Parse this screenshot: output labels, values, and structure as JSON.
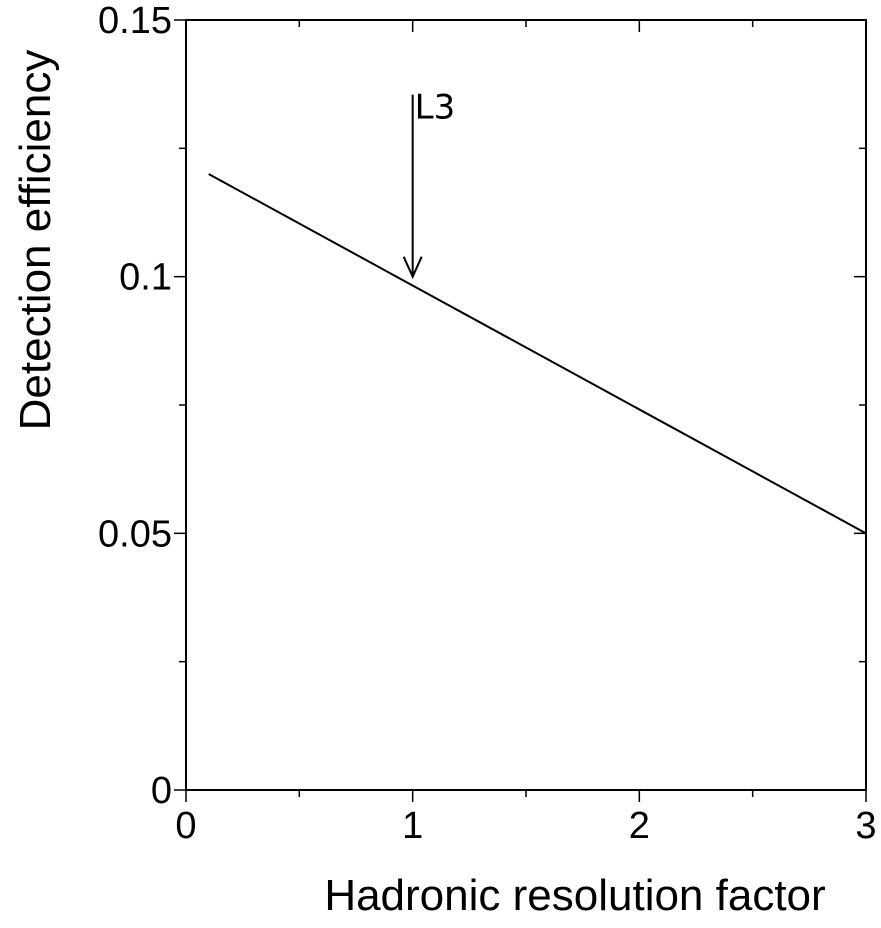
{
  "chart_data": {
    "type": "line",
    "title": "",
    "xlabel": "Hadronic resolution factor",
    "ylabel": "Detection efficiency",
    "xlim": [
      0,
      3
    ],
    "ylim": [
      0,
      0.15
    ],
    "x_ticks": [
      "0",
      "1",
      "2",
      "3"
    ],
    "y_ticks": [
      "0",
      "0.05",
      "0.1",
      "0.15"
    ],
    "grid": false,
    "series": [
      {
        "x": [
          0.1,
          3.0
        ],
        "y": [
          0.12,
          0.05
        ]
      }
    ],
    "annotations": [
      {
        "text": "L3",
        "x": 1.0,
        "y": 0.13,
        "arrow_to": [
          1.0,
          0.1
        ]
      }
    ]
  }
}
